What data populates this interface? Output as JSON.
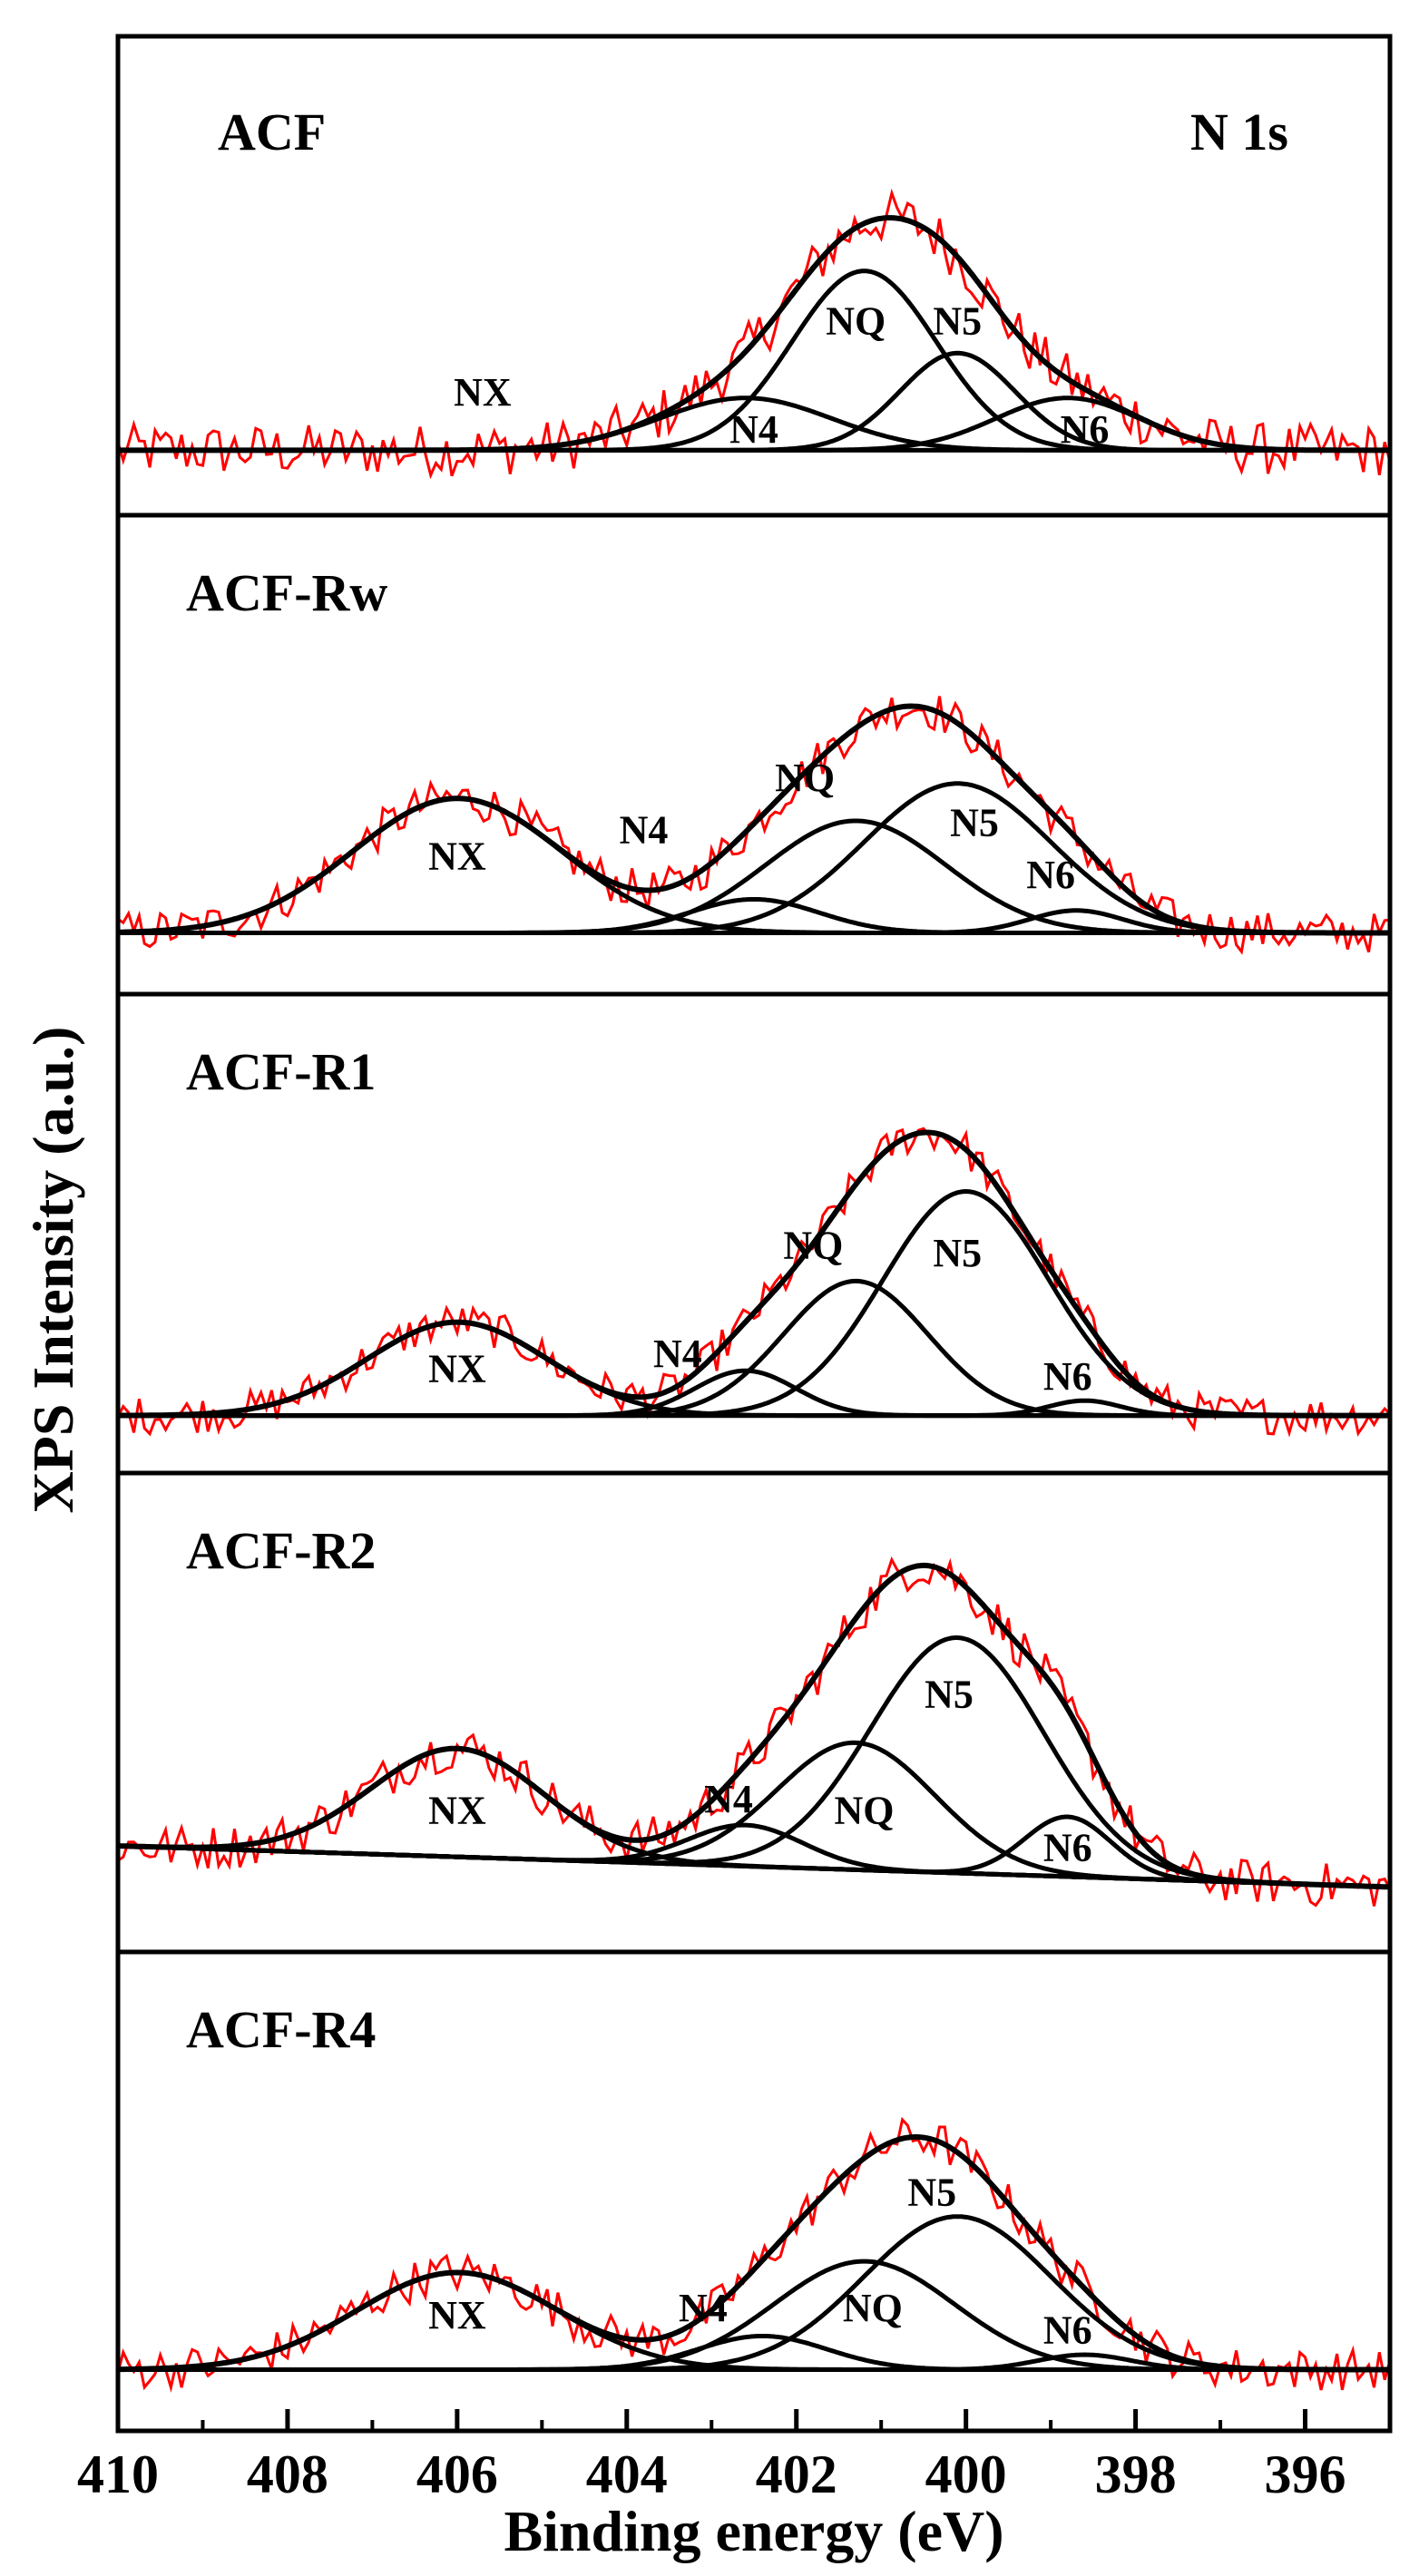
{
  "chart_data": {
    "type": "line",
    "title": "N 1s",
    "xlabel": "Binding energy (eV)",
    "ylabel": "XPS Intensity (a.u.)",
    "xlim": [
      410,
      395
    ],
    "x_ticks": [
      410,
      408,
      406,
      404,
      402,
      400,
      398,
      396
    ],
    "x_tick_labels": [
      "410",
      "408",
      "406",
      "404",
      "402",
      "400",
      "398",
      "396"
    ],
    "data_color": "#ff0000",
    "fit_color": "#000000",
    "panels": [
      {
        "name": "ACF",
        "label": "ACF",
        "ylim": [
          0,
          10
        ],
        "baseline": 0.2,
        "noise": 0.7,
        "peaks": [
          {
            "name": "NX",
            "center": 406.1,
            "fwhm": 2.0,
            "height": 0.0
          },
          {
            "name": "N4",
            "center": 402.6,
            "fwhm": 2.4,
            "height": 1.4
          },
          {
            "name": "NQ",
            "center": 401.2,
            "fwhm": 2.0,
            "height": 4.8
          },
          {
            "name": "N5",
            "center": 400.1,
            "fwhm": 1.6,
            "height": 2.6
          },
          {
            "name": "N6",
            "center": 398.8,
            "fwhm": 2.0,
            "height": 1.4
          }
        ],
        "labels": [
          {
            "text": "NX",
            "x": 405.7,
            "y": 1.4
          },
          {
            "text": "N4",
            "x": 402.5,
            "y": 0.4
          },
          {
            "text": "NQ",
            "x": 401.3,
            "y": 3.3
          },
          {
            "text": "N5",
            "x": 400.1,
            "y": 3.3
          },
          {
            "text": "N6",
            "x": 398.6,
            "y": 0.4
          }
        ]
      },
      {
        "name": "ACF-Rw",
        "label": "ACF-Rw",
        "ylim": [
          0,
          10
        ],
        "baseline": 0.1,
        "noise": 0.55,
        "peaks": [
          {
            "name": "NX",
            "center": 406.0,
            "fwhm": 2.9,
            "height": 3.6
          },
          {
            "name": "N4",
            "center": 402.5,
            "fwhm": 1.8,
            "height": 0.9
          },
          {
            "name": "NQ",
            "center": 401.3,
            "fwhm": 2.5,
            "height": 3.0
          },
          {
            "name": "N5",
            "center": 400.1,
            "fwhm": 2.6,
            "height": 4.0
          },
          {
            "name": "N6",
            "center": 398.7,
            "fwhm": 1.3,
            "height": 0.6
          }
        ],
        "labels": [
          {
            "text": "NX",
            "x": 406.0,
            "y": 1.8
          },
          {
            "text": "N4",
            "x": 403.8,
            "y": 2.5
          },
          {
            "text": "NQ",
            "x": 401.9,
            "y": 3.9
          },
          {
            "text": "N5",
            "x": 399.9,
            "y": 2.7
          },
          {
            "text": "N6",
            "x": 399.0,
            "y": 1.3
          }
        ]
      },
      {
        "name": "ACF-R1",
        "label": "ACF-R1",
        "ylim": [
          0,
          10
        ],
        "baseline": 0.0,
        "noise": 0.5,
        "peaks": [
          {
            "name": "NX",
            "center": 406.0,
            "fwhm": 2.5,
            "height": 2.5
          },
          {
            "name": "N4",
            "center": 402.6,
            "fwhm": 1.4,
            "height": 1.2
          },
          {
            "name": "NQ",
            "center": 401.3,
            "fwhm": 2.0,
            "height": 3.6
          },
          {
            "name": "N5",
            "center": 400.0,
            "fwhm": 2.3,
            "height": 6.0
          },
          {
            "name": "N6",
            "center": 398.6,
            "fwhm": 1.0,
            "height": 0.4
          }
        ],
        "labels": [
          {
            "text": "NX",
            "x": 406.0,
            "y": 0.9
          },
          {
            "text": "N4",
            "x": 403.4,
            "y": 1.3
          },
          {
            "text": "NQ",
            "x": 401.8,
            "y": 4.2
          },
          {
            "text": "N5",
            "x": 400.1,
            "y": 4.0
          },
          {
            "text": "N6",
            "x": 398.8,
            "y": 0.7
          }
        ]
      },
      {
        "name": "ACF-R2",
        "label": "ACF-R2",
        "ylim": [
          0,
          10
        ],
        "baseline": 1.3,
        "baseline_end": 0.2,
        "noise": 0.6,
        "peaks": [
          {
            "name": "NX",
            "center": 406.0,
            "fwhm": 2.4,
            "height": 2.9
          },
          {
            "name": "N4",
            "center": 402.6,
            "fwhm": 1.6,
            "height": 1.1
          },
          {
            "name": "NQ",
            "center": 401.3,
            "fwhm": 2.2,
            "height": 3.4
          },
          {
            "name": "N5",
            "center": 400.1,
            "fwhm": 2.4,
            "height": 6.3
          },
          {
            "name": "N6",
            "center": 398.8,
            "fwhm": 1.2,
            "height": 1.6
          }
        ],
        "labels": [
          {
            "text": "NX",
            "x": 406.0,
            "y": 1.9
          },
          {
            "text": "N4",
            "x": 402.8,
            "y": 2.2
          },
          {
            "text": "NQ",
            "x": 401.2,
            "y": 1.9
          },
          {
            "text": "N5",
            "x": 400.2,
            "y": 5.0
          },
          {
            "text": "N6",
            "x": 398.8,
            "y": 0.9
          }
        ]
      },
      {
        "name": "ACF-R4",
        "label": "ACF-R4",
        "ylim": [
          0,
          10
        ],
        "baseline": 0.1,
        "noise": 0.55,
        "peaks": [
          {
            "name": "NX",
            "center": 406.0,
            "fwhm": 2.8,
            "height": 2.6
          },
          {
            "name": "N4",
            "center": 402.4,
            "fwhm": 1.8,
            "height": 0.9
          },
          {
            "name": "NQ",
            "center": 401.2,
            "fwhm": 2.5,
            "height": 2.9
          },
          {
            "name": "N5",
            "center": 400.1,
            "fwhm": 2.6,
            "height": 4.1
          },
          {
            "name": "N6",
            "center": 398.6,
            "fwhm": 1.3,
            "height": 0.4
          }
        ],
        "labels": [
          {
            "text": "NX",
            "x": 406.0,
            "y": 1.2
          },
          {
            "text": "N4",
            "x": 403.1,
            "y": 1.4
          },
          {
            "text": "NQ",
            "x": 401.1,
            "y": 1.4
          },
          {
            "text": "N5",
            "x": 400.4,
            "y": 4.5
          },
          {
            "text": "N6",
            "x": 398.8,
            "y": 0.8
          }
        ]
      }
    ]
  }
}
